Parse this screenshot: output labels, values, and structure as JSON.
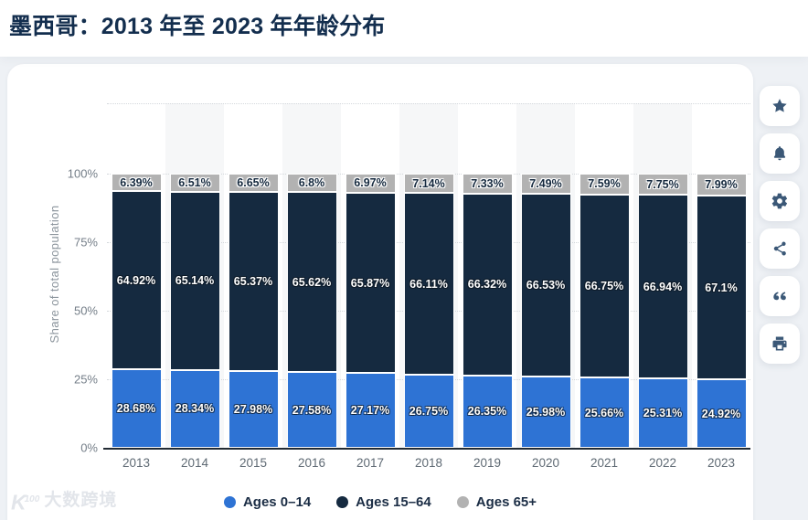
{
  "page": {
    "title": "墨西哥：2013 年至 2023 年年龄分布"
  },
  "chart_data": {
    "type": "bar",
    "stacked": true,
    "title": "墨西哥：2013 年至 2023 年年龄分布",
    "categories": [
      "2013",
      "2014",
      "2015",
      "2016",
      "2017",
      "2018",
      "2019",
      "2020",
      "2021",
      "2022",
      "2023"
    ],
    "series": [
      {
        "name": "Ages 0–14",
        "color": "#2e73d4",
        "label_style": "light",
        "values": [
          28.68,
          28.34,
          27.98,
          27.58,
          27.17,
          26.75,
          26.35,
          25.98,
          25.66,
          25.31,
          24.92
        ]
      },
      {
        "name": "Ages 15–64",
        "color": "#152a40",
        "label_style": "light",
        "values": [
          64.92,
          65.14,
          65.37,
          65.62,
          65.87,
          66.11,
          66.32,
          66.53,
          66.75,
          66.94,
          67.1
        ]
      },
      {
        "name": "Ages 65+",
        "color": "#b2b2b2",
        "label_style": "dark",
        "values": [
          6.39,
          6.51,
          6.65,
          6.8,
          6.97,
          7.14,
          7.33,
          7.49,
          7.59,
          7.75,
          7.99
        ]
      }
    ],
    "xlabel": "",
    "ylabel": "Share of total population",
    "yticks": [
      0,
      25,
      50,
      75,
      100
    ],
    "ytick_suffix": "%",
    "ylim": [
      0,
      125.7
    ],
    "grid": "dotted",
    "legend_position": "bottom",
    "colors": {
      "accent_blue": "#2e73d4",
      "navy": "#152a40",
      "gray": "#b2b2b2"
    }
  },
  "toolbar": {
    "icons": [
      {
        "name": "star"
      },
      {
        "name": "bell"
      },
      {
        "name": "gear"
      },
      {
        "name": "share"
      },
      {
        "name": "quote"
      },
      {
        "name": "printer"
      }
    ]
  },
  "watermark": {
    "logo": "K",
    "logo_sup": "100",
    "text": "大数跨境"
  }
}
